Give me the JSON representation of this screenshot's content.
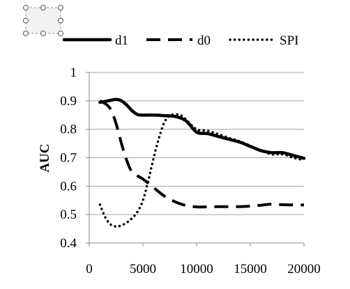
{
  "chart_data": {
    "type": "line",
    "title": "",
    "xlabel": "",
    "ylabel": "AUC",
    "xlim": [
      0,
      20000
    ],
    "ylim": [
      0.4,
      1.0
    ],
    "xticks": [
      0,
      5000,
      10000,
      15000,
      20000
    ],
    "yticks": [
      0.4,
      0.5,
      0.6,
      0.7,
      0.8,
      0.9,
      1.0
    ],
    "xtick_labels": [
      "0",
      "5000",
      "10000",
      "15000",
      "20000"
    ],
    "ytick_labels": [
      "0.4",
      "0.5",
      "0.6",
      "0.7",
      "0.8",
      "0.9",
      "1"
    ],
    "grid": "horizontal",
    "legend_position": "top",
    "series": [
      {
        "name": "d1",
        "style": "solid",
        "x": [
          1000,
          1500,
          2000,
          2500,
          3000,
          3500,
          4000,
          4500,
          5000,
          6000,
          7000,
          8000,
          9000,
          10000,
          11000,
          12000,
          13000,
          14000,
          15000,
          16000,
          17000,
          18000,
          19000,
          20000
        ],
        "y": [
          0.895,
          0.898,
          0.902,
          0.905,
          0.9,
          0.885,
          0.865,
          0.852,
          0.85,
          0.85,
          0.848,
          0.845,
          0.83,
          0.79,
          0.785,
          0.775,
          0.765,
          0.755,
          0.74,
          0.725,
          0.718,
          0.718,
          0.708,
          0.698
        ]
      },
      {
        "name": "d0",
        "style": "dashed",
        "x": [
          1000,
          1500,
          2000,
          2500,
          3000,
          3500,
          4000,
          5000,
          6000,
          7000,
          8000,
          9000,
          10000,
          11000,
          12000,
          13000,
          14000,
          15000,
          16000,
          17000,
          18000,
          19000,
          20000
        ],
        "y": [
          0.9,
          0.89,
          0.87,
          0.82,
          0.75,
          0.69,
          0.65,
          0.625,
          0.595,
          0.565,
          0.545,
          0.532,
          0.527,
          0.527,
          0.528,
          0.528,
          0.528,
          0.53,
          0.533,
          0.537,
          0.535,
          0.534,
          0.534
        ]
      },
      {
        "name": "SPI",
        "style": "dotted",
        "x": [
          1000,
          1500,
          2000,
          2500,
          3000,
          3500,
          4000,
          4500,
          5000,
          5500,
          6000,
          6500,
          7000,
          7500,
          8000,
          8500,
          9000,
          10000,
          11000,
          12000,
          13000,
          14000,
          15000,
          16000,
          17000,
          18000,
          19000,
          20000
        ],
        "y": [
          0.535,
          0.49,
          0.465,
          0.458,
          0.462,
          0.472,
          0.488,
          0.51,
          0.55,
          0.62,
          0.7,
          0.77,
          0.825,
          0.848,
          0.852,
          0.85,
          0.835,
          0.8,
          0.795,
          0.783,
          0.77,
          0.758,
          0.742,
          0.725,
          0.712,
          0.712,
          0.7,
          0.692
        ]
      }
    ]
  }
}
